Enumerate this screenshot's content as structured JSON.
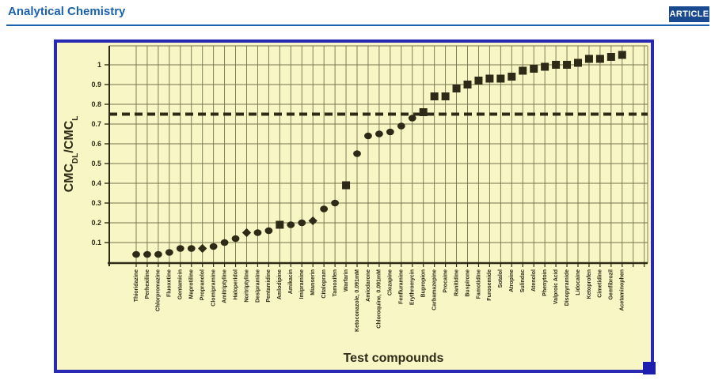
{
  "header": {
    "journal": "Analytical Chemistry",
    "badge": "ARTICLE",
    "brand_color": "#1b62ad",
    "badge_bg": "#19498e"
  },
  "figure": {
    "background": "#f9f6c5",
    "border_color": "#2929b4",
    "grid_color": "#73734c",
    "ink_color": "#2d2b17"
  },
  "chart_data": {
    "type": "scatter",
    "title": "",
    "xlabel": "Test compounds",
    "ylabel": "CMC_DL/CMC_L",
    "ylabel_parts": [
      {
        "text": "CMC",
        "sub": false
      },
      {
        "text": "DL",
        "sub": true
      },
      {
        "text": "/CMC",
        "sub": false
      },
      {
        "text": "L",
        "sub": true
      }
    ],
    "ylim": [
      0,
      1.1
    ],
    "grid": "both",
    "yticks": [
      {
        "value": 0.1,
        "label": "0.1"
      },
      {
        "value": 0.2,
        "label": "0.2"
      },
      {
        "value": 0.3,
        "label": "0.3"
      },
      {
        "value": 0.4,
        "label": "0.4"
      },
      {
        "value": 0.5,
        "label": "0.5"
      },
      {
        "value": 0.6,
        "label": "0.6"
      },
      {
        "value": 0.7,
        "label": "0.7"
      },
      {
        "value": 0.8,
        "label": "0.8"
      },
      {
        "value": 0.9,
        "label": "0.9"
      },
      {
        "value": 1.0,
        "label": "1"
      }
    ],
    "reference_line": {
      "value": 0.75,
      "style": "dashed"
    },
    "points": [
      {
        "label": "Thioridazine",
        "value": 0.04,
        "marker": "circle"
      },
      {
        "label": "Perhexiline",
        "value": 0.04,
        "marker": "circle"
      },
      {
        "label": "Chlorpromazine",
        "value": 0.04,
        "marker": "circle"
      },
      {
        "label": "Fluoxetine",
        "value": 0.05,
        "marker": "circle"
      },
      {
        "label": "Gentamicin",
        "value": 0.07,
        "marker": "circle"
      },
      {
        "label": "Maprotiline",
        "value": 0.07,
        "marker": "circle"
      },
      {
        "label": "Propranolol",
        "value": 0.07,
        "marker": "diamond"
      },
      {
        "label": "Clomipramine",
        "value": 0.08,
        "marker": "circle"
      },
      {
        "label": "Amitriptyline",
        "value": 0.1,
        "marker": "circle"
      },
      {
        "label": "Haloperidol",
        "value": 0.12,
        "marker": "circle"
      },
      {
        "label": "Nortriptyline",
        "value": 0.15,
        "marker": "diamond"
      },
      {
        "label": "Desipramine",
        "value": 0.15,
        "marker": "circle"
      },
      {
        "label": "Pentamidine",
        "value": 0.16,
        "marker": "circle"
      },
      {
        "label": "Amlodipine",
        "value": 0.19,
        "marker": "square"
      },
      {
        "label": "Amikacin",
        "value": 0.19,
        "marker": "circle"
      },
      {
        "label": "Imipramine",
        "value": 0.2,
        "marker": "circle"
      },
      {
        "label": "Mianserin",
        "value": 0.21,
        "marker": "diamond"
      },
      {
        "label": "Citalopram",
        "value": 0.27,
        "marker": "circle"
      },
      {
        "label": "Tamoxifen",
        "value": 0.3,
        "marker": "circle"
      },
      {
        "label": "Warfarin",
        "value": 0.39,
        "marker": "square"
      },
      {
        "label": "Ketoconazole, 0.091mM",
        "value": 0.55,
        "marker": "circle"
      },
      {
        "label": "Amiodarone",
        "value": 0.64,
        "marker": "circle"
      },
      {
        "label": "Chloroquine, 0.091mM",
        "value": 0.65,
        "marker": "circle"
      },
      {
        "label": "Clozapine",
        "value": 0.66,
        "marker": "circle"
      },
      {
        "label": "Fenfluramine",
        "value": 0.69,
        "marker": "circle"
      },
      {
        "label": "Erythromycin",
        "value": 0.73,
        "marker": "circle"
      },
      {
        "label": "Bupropion",
        "value": 0.76,
        "marker": "square"
      },
      {
        "label": "Carbamazepine",
        "value": 0.84,
        "marker": "square"
      },
      {
        "label": "Procaine",
        "value": 0.84,
        "marker": "square"
      },
      {
        "label": "Ranitidine",
        "value": 0.88,
        "marker": "square"
      },
      {
        "label": "Buspirone",
        "value": 0.9,
        "marker": "square"
      },
      {
        "label": "Famotidine",
        "value": 0.92,
        "marker": "square"
      },
      {
        "label": "Furosemide",
        "value": 0.93,
        "marker": "square"
      },
      {
        "label": "Sotalol",
        "value": 0.93,
        "marker": "square"
      },
      {
        "label": "Atropine",
        "value": 0.94,
        "marker": "square"
      },
      {
        "label": "Sulindac",
        "value": 0.97,
        "marker": "square"
      },
      {
        "label": "Atenolol",
        "value": 0.98,
        "marker": "square"
      },
      {
        "label": "Phenytoin",
        "value": 0.99,
        "marker": "square"
      },
      {
        "label": "Valproic Acid",
        "value": 1.0,
        "marker": "square"
      },
      {
        "label": "Disopyramide",
        "value": 1.0,
        "marker": "square"
      },
      {
        "label": "Lidocaine",
        "value": 1.01,
        "marker": "square"
      },
      {
        "label": "Ketoprofen",
        "value": 1.03,
        "marker": "square"
      },
      {
        "label": "Cimetidine",
        "value": 1.03,
        "marker": "square"
      },
      {
        "label": "Gemfibrozil",
        "value": 1.04,
        "marker": "square"
      },
      {
        "label": "Acetaminophen",
        "value": 1.05,
        "marker": "square"
      }
    ]
  }
}
